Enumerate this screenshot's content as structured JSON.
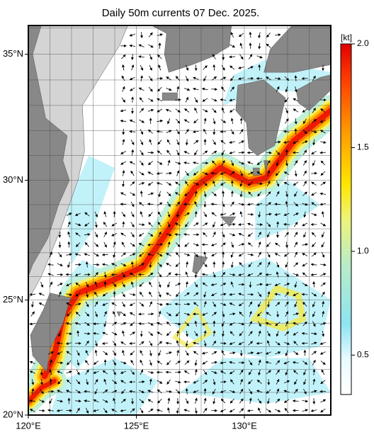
{
  "chart_data": {
    "type": "map",
    "title": "Daily 50m currents 07 Dec. 2025.",
    "xlim": [
      120,
      134
    ],
    "ylim": [
      20,
      36.1
    ],
    "xticks": [
      {
        "value": 120,
        "label": "120°E"
      },
      {
        "value": 125,
        "label": "125°E"
      },
      {
        "value": 130,
        "label": "130°E"
      }
    ],
    "yticks": [
      {
        "value": 20,
        "label": "20°N"
      },
      {
        "value": 25,
        "label": "25°N"
      },
      {
        "value": 30,
        "label": "30°N"
      },
      {
        "value": 35,
        "label": "35°N"
      }
    ],
    "colorbar": {
      "label": "[kt]",
      "clim": [
        0.31,
        2.0
      ],
      "ticks": [
        0.5,
        {
          "value": 1.0,
          "label": "1.0"
        },
        1.5,
        {
          "value": 2.0,
          "label": "2.0"
        }
      ]
    },
    "grid": true
  }
}
